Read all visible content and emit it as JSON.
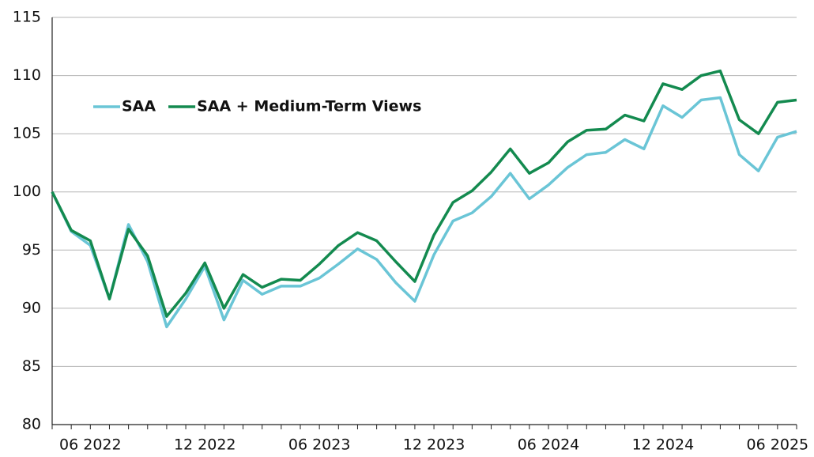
{
  "chart_data": {
    "type": "line",
    "categories": [
      null,
      null,
      "06 2022",
      null,
      null,
      null,
      null,
      null,
      "12 2022",
      null,
      null,
      null,
      null,
      null,
      "06 2023",
      null,
      null,
      null,
      null,
      null,
      "12 2023",
      null,
      null,
      null,
      null,
      null,
      "06 2024",
      null,
      null,
      null,
      null,
      null,
      "12 2024",
      null,
      null,
      null,
      null,
      null,
      "06 2025",
      null
    ],
    "series": [
      {
        "name": "SAA",
        "color": "#6ac5d6",
        "values": [
          100,
          96.6,
          95.4,
          90.8,
          97.2,
          94.0,
          88.4,
          90.8,
          93.6,
          89.0,
          92.4,
          91.2,
          91.9,
          91.9,
          92.6,
          93.8,
          95.1,
          94.2,
          92.2,
          90.6,
          94.6,
          97.5,
          98.2,
          99.6,
          101.6,
          99.4,
          100.6,
          102.1,
          103.2,
          103.4,
          104.5,
          103.7,
          107.4,
          106.4,
          107.9,
          108.1,
          103.2,
          101.8,
          104.7,
          105.2
        ]
      },
      {
        "name": "SAA + Medium-Term Views",
        "color": "#138a4f",
        "values": [
          100,
          96.7,
          95.8,
          90.8,
          96.8,
          94.5,
          89.3,
          91.3,
          93.9,
          90.0,
          92.9,
          91.8,
          92.5,
          92.4,
          93.8,
          95.4,
          96.5,
          95.8,
          94.0,
          92.3,
          96.3,
          99.1,
          100.1,
          101.7,
          103.7,
          101.6,
          102.5,
          104.3,
          105.3,
          105.4,
          106.6,
          106.1,
          109.3,
          108.8,
          110.0,
          110.4,
          106.2,
          105.0,
          107.7,
          107.9
        ]
      }
    ],
    "ylim": [
      80,
      115
    ],
    "yticks": [
      80,
      85,
      90,
      95,
      100,
      105,
      110,
      115
    ],
    "grid": true,
    "legend": "upper left"
  }
}
